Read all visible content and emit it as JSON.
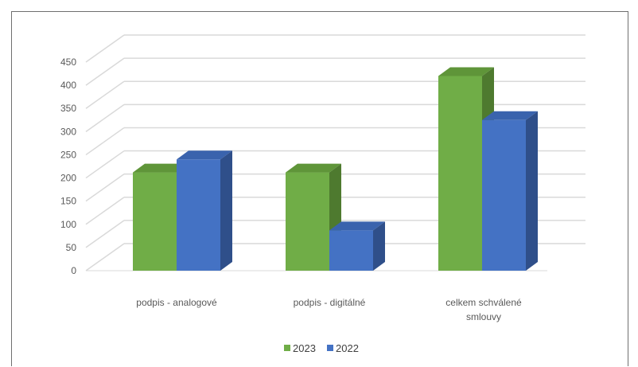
{
  "chart_data": {
    "type": "bar",
    "style": "3d-clustered-column",
    "categories": [
      [
        "podpis  - analogové"
      ],
      [
        "podpis - digitálné"
      ],
      [
        "celkem schválené",
        "smlouvy"
      ]
    ],
    "series": [
      {
        "name": "2023",
        "values": [
          212,
          212,
          420
        ],
        "color": "#70ad47",
        "side_color": "#4e7a2f",
        "top_color": "#5f9539"
      },
      {
        "name": "2022",
        "values": [
          240,
          87,
          325
        ],
        "color": "#4472c4",
        "side_color": "#2f4f8a",
        "top_color": "#3a63ad"
      }
    ],
    "yticks": [
      0,
      50,
      100,
      150,
      200,
      250,
      300,
      350,
      400,
      450
    ],
    "ylim": [
      0,
      450
    ],
    "grid": true,
    "legend": "bottom",
    "gridline_color": "#d9d9d9"
  }
}
